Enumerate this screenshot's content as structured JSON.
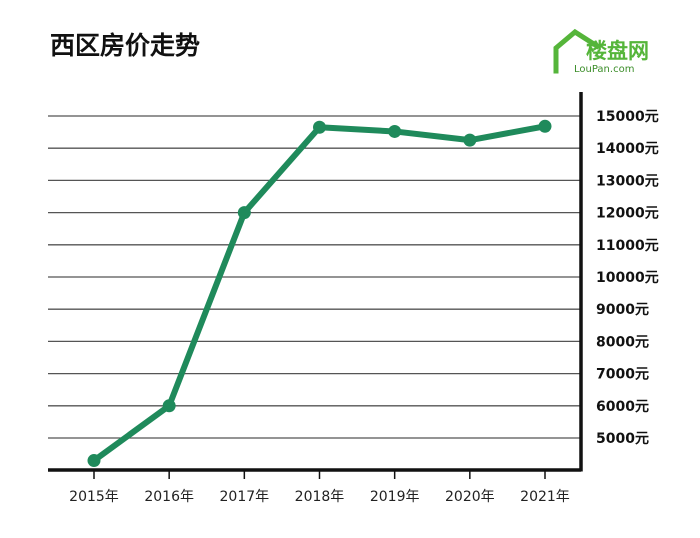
{
  "colors": {
    "line": "#1f8a5b",
    "grid": "#555555",
    "axis": "#111111",
    "logo_green": "#55b53a",
    "logo_dark": "#3c8e2a"
  },
  "logo": {
    "name_cn": "楼盘网",
    "name_en": "LouPan.com",
    "icon": "house-roof-icon"
  },
  "chart_data": {
    "type": "line",
    "title": "西区房价走势",
    "xlabel": "",
    "ylabel": "",
    "x": [
      "2015年",
      "2016年",
      "2017年",
      "2018年",
      "2019年",
      "2020年",
      "2021年"
    ],
    "values": [
      4300,
      6000,
      12000,
      14650,
      14520,
      14250,
      14680
    ],
    "ylim": [
      4000,
      15500
    ],
    "y_ticks": [
      5000,
      6000,
      7000,
      8000,
      9000,
      10000,
      11000,
      12000,
      13000,
      14000,
      15000
    ],
    "y_tick_labels": [
      "5000元",
      "6000元",
      "7000元",
      "8000元",
      "9000元",
      "10000元",
      "11000元",
      "12000元",
      "13000元",
      "14000元",
      "15000元"
    ],
    "y_axis_side": "right",
    "grid": true,
    "legend": "none"
  }
}
